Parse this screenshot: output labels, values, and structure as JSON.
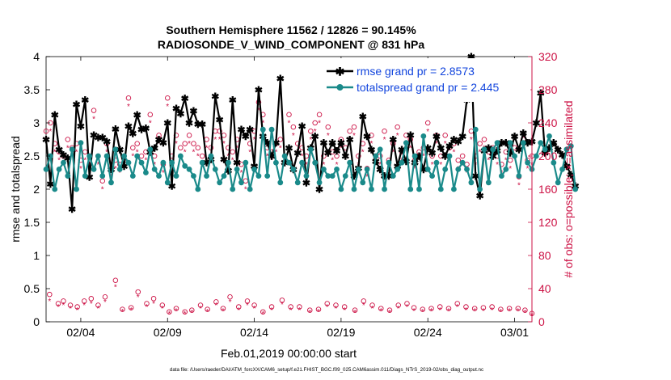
{
  "chart_data": {
    "type": "line",
    "title_line1": "Southern Hemisphere 11562 / 12826 = 90.145%",
    "title_line2": "RADIOSONDE_V_WIND_COMPONENT @ 831 hPa",
    "xlabel": "Feb.01,2019 00:00:00 start",
    "ylabel_left": "rmse and totalspread",
    "ylabel_right": "# of obs: o=possible; ×=assimilated",
    "footer": "data file: /Users/raeder/DAI/ATM_forcXX/CAM6_setup/f.e21.FHIST_BGC.f09_025.CAM6assim.011/Diags_NTrS_2019-02/obs_diag_output.nc",
    "xlim": [
      1,
      29
    ],
    "ylim_left": [
      0,
      4
    ],
    "ylim_right": [
      0,
      320
    ],
    "x_ticks": [
      3,
      8,
      13,
      18,
      23,
      28
    ],
    "x_tick_labels": [
      "02/04",
      "02/09",
      "02/14",
      "02/19",
      "02/24",
      "03/01"
    ],
    "y_left_ticks": [
      0,
      0.5,
      1,
      1.5,
      2,
      2.5,
      3,
      3.5,
      4
    ],
    "y_left_tick_labels": [
      "0",
      "0.5",
      "1",
      "1.5",
      "2",
      "2.5",
      "3",
      "3.5",
      "4"
    ],
    "y_right_ticks": [
      0,
      40,
      80,
      120,
      160,
      200,
      240,
      280,
      320
    ],
    "y_right_tick_labels": [
      "0",
      "40",
      "80",
      "120",
      "160",
      "200",
      "240",
      "280",
      "320"
    ],
    "x_start": 1.0,
    "x_step": 0.25,
    "series": [
      {
        "name": "rmse",
        "legend_label": "rmse grand pr = 2.8573",
        "color": "#000000",
        "marker": "star",
        "axis": "left",
        "values": [
          2.75,
          2.08,
          3.12,
          2.6,
          2.52,
          2.47,
          1.7,
          3.28,
          2.95,
          3.35,
          2.18,
          2.82,
          2.78,
          2.78,
          2.72,
          2.3,
          2.91,
          2.6,
          2.35,
          2.95,
          2.84,
          3.12,
          2.9,
          2.92,
          2.56,
          2.62,
          2.75,
          2.7,
          3.0,
          2.05,
          3.22,
          3.14,
          3.37,
          3.0,
          3.18,
          2.98,
          2.98,
          2.4,
          2.45,
          3.4,
          3.05,
          2.45,
          2.28,
          3.35,
          2.4,
          2.9,
          2.8,
          2.9,
          2.35,
          3.5,
          2.8,
          2.7,
          2.5,
          2.7,
          3.67,
          2.4,
          2.62,
          2.3,
          2.55,
          2.95,
          2.1,
          2.62,
          2.8,
          2.0,
          2.7,
          2.55,
          2.7,
          2.58,
          2.7,
          2.5,
          2.75,
          2.2,
          2.32,
          3.1,
          2.8,
          2.6,
          2.42,
          2.3,
          2.2,
          2.2,
          2.75,
          2.35,
          2.6,
          2.42,
          2.82,
          2.4,
          2.5,
          2.3,
          2.62,
          2.55,
          2.8,
          2.62,
          2.5,
          2.65,
          2.75,
          2.72,
          2.8,
          3.35,
          4.0,
          2.2,
          1.9,
          2.58,
          2.62,
          2.5,
          2.58,
          2.7,
          2.7,
          2.55,
          2.8,
          2.6,
          2.85,
          2.7,
          2.72,
          3.0,
          3.45,
          2.55,
          2.62,
          2.7,
          2.6,
          2.52,
          2.35,
          2.22,
          2.05
        ]
      },
      {
        "name": "totalspread",
        "legend_label": "totalspread grand pr = 2.445",
        "color": "#1a8a8a",
        "marker": "circle",
        "axis": "left",
        "values": [
          2.3,
          2.5,
          2.0,
          2.3,
          2.4,
          2.2,
          2.6,
          2.0,
          2.7,
          2.2,
          2.5,
          2.3,
          2.5,
          2.2,
          2.5,
          2.1,
          2.6,
          2.3,
          2.5,
          2.4,
          2.2,
          2.5,
          2.4,
          2.25,
          2.6,
          2.3,
          2.2,
          2.4,
          2.1,
          2.4,
          2.2,
          2.5,
          2.35,
          2.3,
          2.2,
          2.0,
          2.4,
          2.2,
          2.5,
          2.3,
          2.1,
          2.2,
          2.4,
          2.0,
          2.3,
          2.1,
          2.4,
          2.0,
          2.3,
          2.2,
          2.9,
          2.2,
          2.9,
          2.4,
          2.1,
          2.5,
          2.4,
          2.3,
          2.1,
          2.4,
          2.2,
          2.6,
          2.4,
          2.1,
          2.3,
          2.2,
          2.2,
          2.3,
          2.0,
          2.2,
          2.4,
          2.0,
          2.3,
          2.1,
          2.3,
          2.0,
          2.5,
          2.6,
          2.0,
          2.4,
          2.2,
          2.3,
          2.4,
          2.7,
          2.0,
          2.5,
          2.0,
          2.8,
          2.3,
          2.2,
          2.4,
          2.0,
          2.3,
          2.5,
          2.0,
          2.3,
          2.4,
          2.3,
          2.1,
          2.9,
          2.0,
          2.6,
          2.1,
          2.6,
          2.7,
          2.2,
          2.3,
          2.7,
          2.5,
          2.2,
          2.7,
          2.4,
          2.3,
          2.5,
          2.7,
          2.6,
          2.8,
          2.4,
          2.1,
          2.3,
          2.6,
          2.65,
          2.0
        ]
      },
      {
        "name": "obs_possible",
        "color": "#cc1144",
        "marker": "open-circle",
        "axis": "right",
        "values": [
          230,
          240,
          215,
          205,
          200,
          220,
          210,
          215,
          195,
          205,
          200,
          255,
          200,
          170,
          215,
          185,
          195,
          190,
          200,
          270,
          210,
          215,
          200,
          205,
          250,
          200,
          225,
          190,
          270,
          200,
          225,
          210,
          215,
          225,
          215,
          210,
          200,
          220,
          210,
          230,
          230,
          225,
          210,
          205,
          220,
          190,
          170,
          215,
          230,
          265,
          250,
          210,
          205,
          215,
          220,
          200,
          250,
          235,
          215,
          210,
          200,
          230,
          240,
          250,
          200,
          235,
          205,
          200,
          220,
          210,
          230,
          235,
          200,
          215,
          185,
          225,
          200,
          200,
          230,
          195,
          215,
          235,
          205,
          225,
          220,
          195,
          205,
          210,
          240,
          200,
          225,
          200,
          225,
          210,
          215,
          195,
          200,
          190,
          230,
          200,
          215,
          220,
          205,
          210,
          200,
          190,
          205,
          195,
          210,
          175,
          220,
          195,
          200,
          215,
          190,
          180,
          205,
          210,
          200,
          195,
          215,
          205,
          200
        ]
      },
      {
        "name": "obs_assimilated",
        "color": "#cc1144",
        "marker": "asterisk",
        "axis": "right",
        "values": [
          220,
          230,
          205,
          195,
          190,
          210,
          200,
          205,
          185,
          195,
          190,
          245,
          190,
          160,
          205,
          175,
          185,
          180,
          190,
          260,
          200,
          205,
          190,
          195,
          240,
          190,
          215,
          180,
          260,
          190,
          215,
          200,
          205,
          215,
          205,
          200,
          190,
          210,
          200,
          220,
          220,
          215,
          200,
          195,
          210,
          180,
          160,
          205,
          220,
          255,
          240,
          200,
          195,
          205,
          210,
          190,
          240,
          225,
          205,
          200,
          190,
          220,
          230,
          240,
          190,
          225,
          195,
          190,
          210,
          200,
          220,
          225,
          190,
          205,
          175,
          215,
          190,
          190,
          220,
          185,
          205,
          225,
          195,
          215,
          210,
          185,
          195,
          200,
          230,
          190,
          215,
          190,
          215,
          200,
          205,
          185,
          190,
          180,
          220,
          190,
          205,
          210,
          195,
          200,
          190,
          180,
          195,
          185,
          200,
          165,
          210,
          185,
          190,
          205,
          180,
          170,
          195,
          200,
          190,
          185,
          205,
          195,
          190
        ]
      },
      {
        "name": "obs_possible_low",
        "color": "#cc1144",
        "marker": "open-circle",
        "axis": "right",
        "x": [
          1.2,
          1.7,
          2.0,
          2.4,
          2.8,
          3.2,
          3.6,
          4.0,
          4.4,
          5.0,
          5.4,
          5.9,
          6.3,
          6.8,
          7.2,
          7.7,
          8.1,
          8.5,
          9.0,
          9.4,
          9.9,
          10.3,
          10.8,
          11.2,
          11.6,
          12.1,
          12.6,
          13.0,
          13.5,
          14.0,
          14.6,
          15.1,
          15.6,
          16.2,
          16.7,
          17.2,
          17.7,
          18.2,
          18.8,
          19.3,
          19.8,
          20.3,
          20.8,
          21.3,
          21.8,
          22.2,
          22.7,
          23.2,
          23.7,
          24.2,
          24.7,
          25.2,
          25.7,
          26.2,
          26.7,
          27.2,
          27.7,
          28.2,
          28.6,
          29.0
        ],
        "values": [
          33,
          22,
          25,
          20,
          18,
          25,
          28,
          20,
          30,
          50,
          15,
          17,
          36,
          22,
          28,
          20,
          12,
          16,
          12,
          14,
          20,
          15,
          24,
          16,
          30,
          18,
          25,
          20,
          12,
          18,
          26,
          18,
          18,
          14,
          15,
          22,
          20,
          18,
          14,
          25,
          20,
          16,
          14,
          20,
          22,
          17,
          15,
          16,
          18,
          16,
          22,
          18,
          16,
          17,
          18,
          15,
          16,
          16,
          14,
          10
        ]
      },
      {
        "name": "obs_assimilated_low",
        "color": "#cc1144",
        "marker": "asterisk",
        "axis": "right",
        "x": [
          1.2,
          1.7,
          2.0,
          2.4,
          2.8,
          3.2,
          3.6,
          4.0,
          4.4,
          5.0,
          5.4,
          5.9,
          6.3,
          6.8,
          7.2,
          7.7,
          8.1,
          8.5,
          9.0,
          9.4,
          9.9,
          10.3,
          10.8,
          11.2,
          11.6,
          12.1,
          12.6,
          13.0,
          13.5,
          14.0,
          14.6,
          15.1,
          15.6,
          16.2,
          16.7,
          17.2,
          17.7,
          18.2,
          18.8,
          19.3,
          19.8,
          20.3,
          20.8,
          21.3,
          21.8,
          22.2,
          22.7,
          23.2,
          23.7,
          24.2,
          24.7,
          25.2,
          25.7,
          26.2,
          26.7,
          27.2,
          27.7,
          28.2,
          28.6,
          29.0
        ],
        "values": [
          25,
          18,
          20,
          16,
          14,
          20,
          22,
          16,
          24,
          42,
          12,
          14,
          30,
          18,
          22,
          16,
          10,
          13,
          10,
          11,
          16,
          12,
          20,
          13,
          24,
          14,
          20,
          16,
          10,
          14,
          21,
          14,
          14,
          11,
          12,
          18,
          16,
          14,
          11,
          20,
          16,
          13,
          11,
          16,
          18,
          13,
          12,
          13,
          14,
          13,
          18,
          14,
          13,
          13,
          14,
          12,
          13,
          13,
          11,
          8
        ]
      }
    ]
  }
}
